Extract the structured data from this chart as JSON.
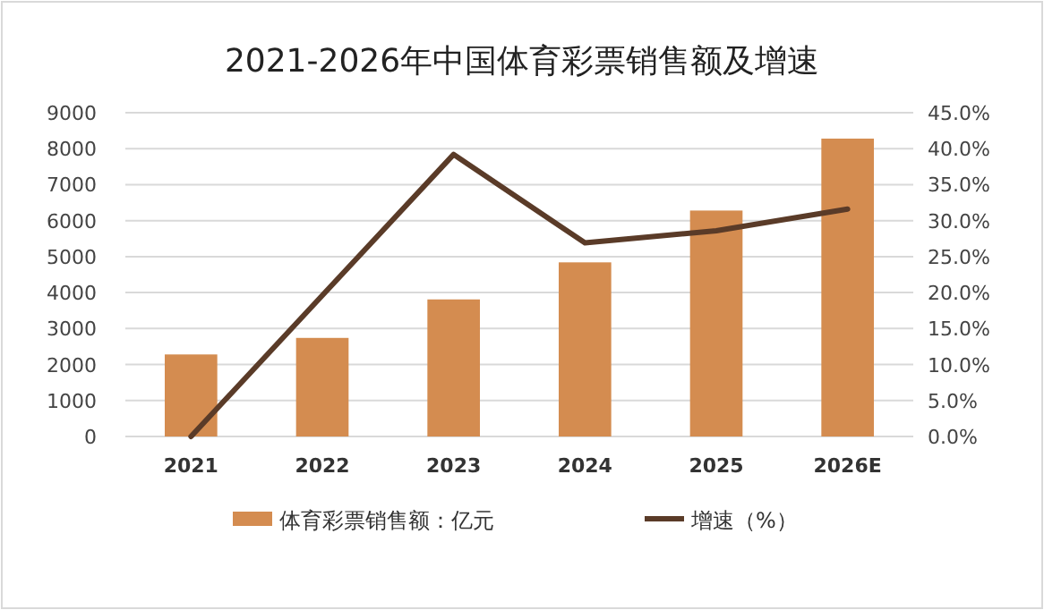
{
  "chart_data": {
    "type": "bar",
    "title": "2021-2026年中国体育彩票销售额及增速",
    "categories": [
      "2021",
      "2022",
      "2023",
      "2024",
      "2025",
      "2026E"
    ],
    "series": [
      {
        "name": "体育彩票销售额：亿元",
        "color": "#d48c50",
        "values": [
          2280,
          2740,
          3810,
          4840,
          6280,
          8280
        ]
      },
      {
        "name": "增速（%）",
        "type": "line",
        "axis": "y2",
        "color": "#5a3b28",
        "values": [
          0,
          19.6,
          39.2,
          26.9,
          28.6,
          31.6
        ]
      }
    ],
    "ylim": [
      0,
      9000
    ],
    "yticks": [
      0,
      1000,
      2000,
      3000,
      4000,
      5000,
      6000,
      7000,
      8000,
      9000
    ],
    "y2lim": [
      0,
      45
    ],
    "y2ticks": [
      {
        "value": 0,
        "label": "0.0%"
      },
      {
        "value": 5,
        "label": "5.0%"
      },
      {
        "value": 10,
        "label": "10.0%"
      },
      {
        "value": 15,
        "label": "15.0%"
      },
      {
        "value": 20,
        "label": "20.0%"
      },
      {
        "value": 25,
        "label": "25.0%"
      },
      {
        "value": 30,
        "label": "30.0%"
      },
      {
        "value": 35,
        "label": "35.0%"
      },
      {
        "value": 40,
        "label": "40.0%"
      },
      {
        "value": 45,
        "label": "45.0%"
      }
    ],
    "grid": "y",
    "legend": "bottom"
  }
}
